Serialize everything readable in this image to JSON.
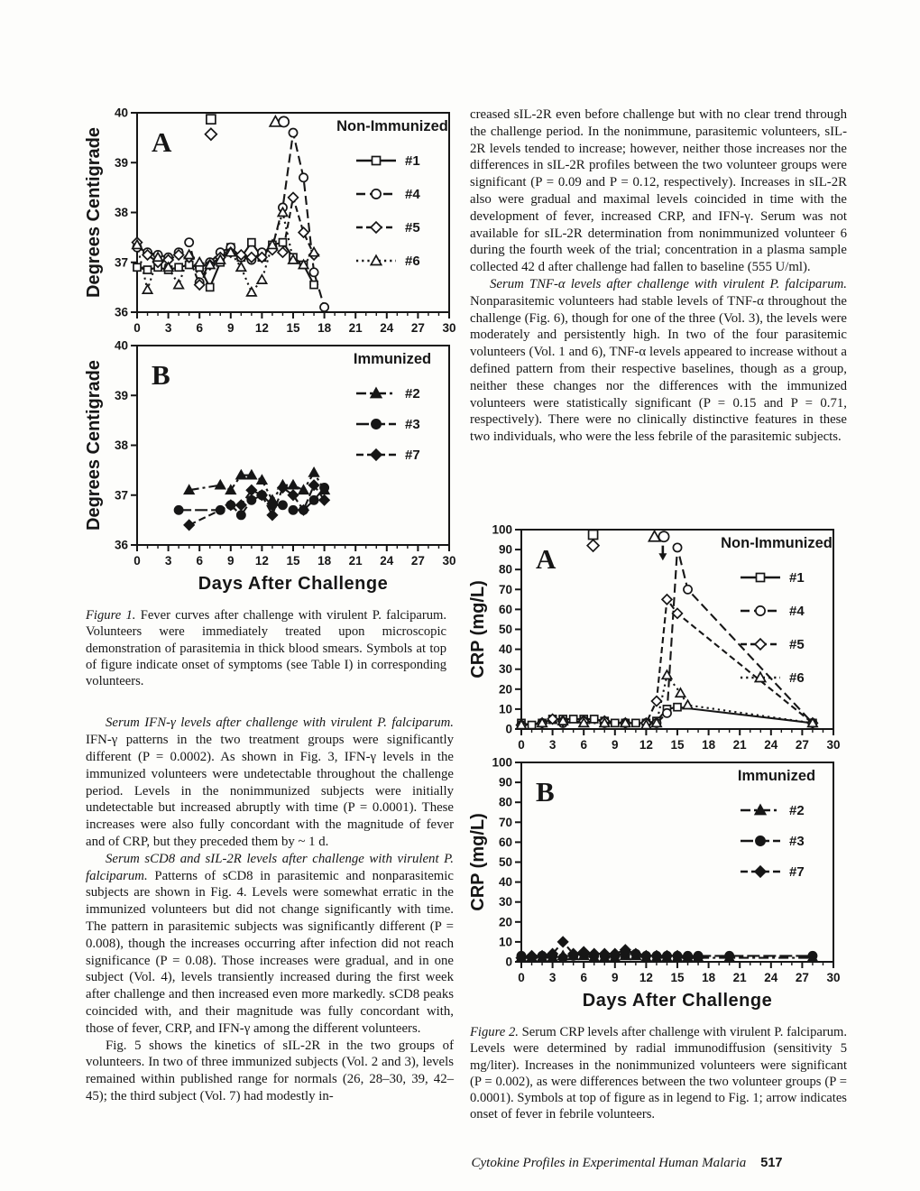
{
  "figures": {
    "fig1": {
      "x_axis_label": "Days After Challenge",
      "caption_label": "Figure 1.",
      "caption_text": " Fever curves after challenge with virulent P. falciparum. Volunteers were immediately treated upon microscopic demonstration of parasitemia in thick blood smears. Symbols at top of figure indicate onset of symptoms (see Table I) in corresponding volunteers."
    },
    "fig2": {
      "x_axis_label": "Days After Challenge",
      "caption_label": "Figure 2.",
      "caption_text": " Serum CRP levels after challenge with virulent P. falciparum. Levels were determined by radial immunodiffusion (sensitivity 5 mg/liter). Increases in the nonimmunized volunteers were significant (P = 0.002), as were differences between the two volunteer groups (P = 0.0001). Symbols at top of figure as in legend to Fig. 1; arrow indicates onset of fever in febrile volunteers."
    }
  },
  "left_column": {
    "paragraphs": [
      {
        "lead": "Serum IFN-γ levels after challenge with virulent P. falciparum.",
        "rest": " IFN-γ patterns in the two treatment groups were significantly different (P = 0.0002). As shown in Fig. 3, IFN-γ levels in the immunized volunteers were undetectable throughout the challenge period. Levels in the nonimmunized subjects were initially undetectable but increased abruptly with time (P = 0.0001). These increases were also fully concordant with the magnitude of fever and of CRP, but they preceded them by ~ 1 d."
      },
      {
        "lead": "Serum sCD8 and sIL-2R levels after challenge with virulent P. falciparum.",
        "rest": " Patterns of sCD8 in parasitemic and nonparasitemic subjects are shown in Fig. 4. Levels were somewhat erratic in the immunized volunteers but did not change significantly with time. The pattern in parasitemic subjects was significantly different (P = 0.008), though the increases occurring after infection did not reach significance (P = 0.08). Those increases were gradual, and in one subject (Vol. 4), levels transiently increased during the first week after challenge and then increased even more markedly. sCD8 peaks coincided with, and their magnitude was fully concordant with, those of fever, CRP, and IFN-γ among the different volunteers."
      },
      {
        "lead": "",
        "rest": "Fig. 5 shows the kinetics of sIL-2R in the two groups of volunteers. In two of three immunized subjects (Vol. 2 and 3), levels remained within published range for normals (26, 28–30, 39, 42–45); the third subject (Vol. 7) had modestly in-"
      }
    ]
  },
  "right_column": {
    "paragraphs": [
      {
        "lead": "",
        "rest": "creased sIL-2R even before challenge but with no clear trend through the challenge period. In the nonimmune, parasitemic volunteers, sIL-2R levels tended to increase; however, neither those increases nor the differences in sIL-2R profiles between the two volunteer groups were significant (P = 0.09 and P = 0.12, respectively). Increases in sIL-2R also were gradual and maximal levels coincided in time with the development of fever, increased CRP, and IFN-γ. Serum was not available for sIL-2R determination from nonimmunized volunteer 6 during the fourth week of the trial; concentration in a plasma sample collected 42 d after challenge had fallen to baseline (555 U/ml)."
      },
      {
        "lead": "Serum TNF-α levels after challenge with virulent P. falciparum.",
        "rest": " Nonparasitemic volunteers had stable levels of TNF-α throughout the challenge (Fig. 6), though for one of the three (Vol. 3), the levels were moderately and persistently high. In two of the four parasitemic volunteers (Vol. 1 and 6), TNF-α levels appeared to increase without a defined pattern from their respective baselines, though as a group, neither these changes nor the differences with the immunized volunteers were statistically significant (P = 0.15 and P = 0.71, respectively). There were no clinically distinctive features in these two individuals, who were the less febrile of the parasitemic subjects."
      }
    ]
  },
  "footer": {
    "running_title": "Cytokine Profiles in Experimental Human Malaria",
    "page_number": "517"
  },
  "chart_data": [
    {
      "type": "line",
      "panel_label": "A",
      "legend_title": "Non-Immunized",
      "ylabel": "Degrees Centigrade",
      "xlim": [
        0,
        30
      ],
      "ylim": [
        36,
        40
      ],
      "xticks": [
        0,
        3,
        6,
        9,
        12,
        15,
        18,
        21,
        24,
        27,
        30
      ],
      "yticks": [
        36,
        37,
        38,
        39,
        40
      ],
      "series": [
        {
          "name": "#1",
          "marker": "square",
          "filled": false,
          "dash": "solid",
          "x": [
            0,
            1,
            2,
            3,
            4,
            5,
            6,
            7,
            8,
            9,
            10,
            11,
            12,
            13,
            14,
            15,
            16,
            17
          ],
          "y": [
            36.9,
            36.85,
            36.9,
            36.85,
            36.9,
            36.95,
            36.9,
            36.5,
            37.0,
            37.3,
            37.1,
            37.4,
            37.1,
            37.35,
            37.4,
            37.1,
            36.95,
            36.55
          ]
        },
        {
          "name": "#4",
          "marker": "circle",
          "filled": false,
          "dash": "dashed",
          "x": [
            0,
            1,
            2,
            3,
            4,
            5,
            6,
            7,
            8,
            9,
            10,
            11,
            12,
            13,
            14,
            15,
            16,
            17,
            18
          ],
          "y": [
            37.3,
            37.2,
            37.15,
            37.1,
            37.2,
            37.4,
            36.6,
            37.0,
            37.2,
            37.3,
            37.1,
            37.05,
            37.2,
            37.3,
            38.1,
            39.6,
            38.7,
            36.8,
            36.1
          ]
        },
        {
          "name": "#5",
          "marker": "diamond",
          "filled": false,
          "dash": "dashed2",
          "x": [
            0,
            1,
            2,
            3,
            4,
            5,
            6,
            7,
            8,
            9,
            10,
            11,
            12,
            13,
            14,
            15,
            16,
            17
          ],
          "y": [
            37.4,
            37.15,
            37.0,
            37.05,
            37.15,
            37.1,
            36.55,
            36.95,
            37.1,
            37.2,
            37.15,
            37.1,
            37.1,
            37.25,
            37.2,
            38.3,
            37.6,
            37.15
          ]
        },
        {
          "name": "#6",
          "marker": "triangle",
          "filled": false,
          "dash": "dotted",
          "x": [
            0,
            1,
            2,
            3,
            4,
            5,
            6,
            7,
            8,
            9,
            10,
            11,
            12,
            13,
            14,
            15,
            16,
            17
          ],
          "y": [
            37.35,
            36.45,
            37.1,
            36.9,
            36.55,
            37.15,
            37.0,
            36.95,
            37.05,
            37.2,
            36.9,
            36.4,
            36.65,
            37.35,
            38.0,
            37.05,
            36.95,
            37.2
          ]
        }
      ],
      "onset_markers": [
        {
          "marker": "square",
          "x": 7.1,
          "y": 39.87
        },
        {
          "marker": "diamond",
          "x": 7.1,
          "y": 39.57
        },
        {
          "marker": "triangle",
          "x": 13.3,
          "y": 39.82
        },
        {
          "marker": "circle",
          "x": 14.1,
          "y": 39.82
        }
      ]
    },
    {
      "type": "line",
      "panel_label": "B",
      "legend_title": "Immunized",
      "ylabel": "Degrees Centigrade",
      "xlim": [
        0,
        30
      ],
      "ylim": [
        36,
        40
      ],
      "xticks": [
        0,
        3,
        6,
        9,
        12,
        15,
        18,
        21,
        24,
        27,
        30
      ],
      "yticks": [
        36,
        37,
        38,
        39,
        40
      ],
      "series": [
        {
          "name": "#2",
          "marker": "triangle",
          "filled": true,
          "dash": "dashdot",
          "x": [
            5,
            8,
            9,
            10,
            11,
            12,
            13,
            14,
            15,
            16,
            17,
            18
          ],
          "y": [
            37.1,
            37.2,
            37.1,
            37.4,
            37.4,
            37.3,
            36.9,
            37.2,
            37.2,
            37.1,
            37.45,
            37.1
          ]
        },
        {
          "name": "#3",
          "marker": "circle",
          "filled": true,
          "dash": "longdash",
          "x": [
            4,
            8,
            9,
            10,
            11,
            12,
            13,
            14,
            15,
            16,
            17,
            18
          ],
          "y": [
            36.7,
            36.7,
            36.8,
            36.6,
            36.9,
            37.0,
            36.8,
            36.8,
            36.7,
            36.7,
            36.9,
            37.15
          ]
        },
        {
          "name": "#7",
          "marker": "diamond",
          "filled": true,
          "dash": "shortdash",
          "x": [
            5,
            9,
            10,
            11,
            12,
            13,
            14,
            15,
            16,
            17,
            18
          ],
          "y": [
            36.4,
            36.8,
            36.8,
            37.1,
            37.0,
            36.6,
            37.15,
            37.0,
            36.7,
            37.2,
            36.9
          ]
        }
      ],
      "onset_markers": []
    },
    {
      "type": "line",
      "panel_label": "A",
      "legend_title": "Non-Immunized",
      "ylabel": "CRP (mg/L)",
      "xlim": [
        0,
        30
      ],
      "ylim": [
        0,
        100
      ],
      "xticks": [
        0,
        3,
        6,
        9,
        12,
        15,
        18,
        21,
        24,
        27,
        30
      ],
      "yticks": [
        0,
        10,
        20,
        30,
        40,
        50,
        60,
        70,
        80,
        90,
        100
      ],
      "series": [
        {
          "name": "#1",
          "marker": "square",
          "filled": false,
          "dash": "solid",
          "x": [
            0,
            1,
            2,
            3,
            4,
            5,
            6,
            7,
            8,
            9,
            10,
            11,
            12,
            13,
            14,
            15,
            28
          ],
          "y": [
            3,
            2,
            3,
            5,
            5,
            5,
            5,
            5,
            4,
            3,
            3,
            3,
            3,
            4,
            10,
            11,
            3
          ]
        },
        {
          "name": "#4",
          "marker": "circle",
          "filled": false,
          "dash": "dashed",
          "x": [
            0,
            2,
            4,
            6,
            8,
            10,
            12,
            13,
            14,
            15,
            16,
            28
          ],
          "y": [
            2,
            3,
            3,
            4,
            3,
            3,
            3,
            3,
            8,
            91,
            70,
            3
          ]
        },
        {
          "name": "#5",
          "marker": "diamond",
          "filled": false,
          "dash": "dashed2",
          "x": [
            0,
            2,
            3,
            4,
            6,
            8,
            10,
            12,
            13,
            14,
            15,
            28
          ],
          "y": [
            2,
            3,
            5,
            4,
            4,
            4,
            3,
            3,
            14,
            65,
            58,
            3
          ]
        },
        {
          "name": "#6",
          "marker": "triangle",
          "filled": false,
          "dash": "dotted",
          "x": [
            0,
            2,
            4,
            6,
            8,
            10,
            12,
            13,
            14,
            15.3,
            16,
            28
          ],
          "y": [
            2,
            3,
            4,
            3,
            3,
            3,
            2,
            3,
            27,
            18,
            12,
            3
          ]
        }
      ],
      "onset_markers": [
        {
          "marker": "square",
          "x": 6.9,
          "y": 97.5
        },
        {
          "marker": "diamond",
          "x": 6.9,
          "y": 92
        },
        {
          "marker": "triangle",
          "x": 12.8,
          "y": 96.5
        },
        {
          "marker": "circle",
          "x": 13.7,
          "y": 96.5
        }
      ],
      "arrow": {
        "x": 13.6,
        "y_from": 92,
        "y_to": 84.5
      }
    },
    {
      "type": "line",
      "panel_label": "B",
      "legend_title": "Immunized",
      "ylabel": "CRP (mg/L)",
      "xlim": [
        0,
        30
      ],
      "ylim": [
        0,
        100
      ],
      "xticks": [
        0,
        3,
        6,
        9,
        12,
        15,
        18,
        21,
        24,
        27,
        30
      ],
      "yticks": [
        0,
        10,
        20,
        30,
        40,
        50,
        60,
        70,
        80,
        90,
        100
      ],
      "series": [
        {
          "name": "#2",
          "marker": "triangle",
          "filled": true,
          "dash": "dashdot",
          "x": [
            0,
            1,
            2,
            3,
            4,
            5,
            6,
            7,
            8,
            9,
            10,
            11,
            12,
            13,
            14,
            15,
            16,
            17,
            20,
            28
          ],
          "y": [
            2,
            2,
            2,
            2,
            3,
            3,
            3,
            2,
            2,
            2,
            3,
            3,
            2,
            2,
            2,
            2,
            2,
            2,
            2,
            2
          ]
        },
        {
          "name": "#3",
          "marker": "circle",
          "filled": true,
          "dash": "longdash",
          "x": [
            0,
            1,
            2,
            3,
            4,
            5,
            6,
            7,
            8,
            9,
            10,
            11,
            12,
            13,
            14,
            15,
            16,
            17,
            20,
            28
          ],
          "y": [
            3,
            2,
            3,
            3,
            2,
            3,
            4,
            3,
            3,
            3,
            4,
            4,
            3,
            3,
            3,
            3,
            3,
            3,
            3,
            3
          ]
        },
        {
          "name": "#7",
          "marker": "diamond",
          "filled": true,
          "dash": "shortdash",
          "x": [
            0,
            1,
            2,
            3,
            4,
            5,
            6,
            7,
            8,
            9,
            10,
            11,
            12,
            13,
            14,
            15,
            16,
            17
          ],
          "y": [
            2,
            3,
            3,
            4,
            10,
            4,
            5,
            4,
            4,
            4,
            6,
            4,
            3,
            3,
            3,
            3,
            2,
            2
          ]
        }
      ],
      "onset_markers": []
    }
  ]
}
